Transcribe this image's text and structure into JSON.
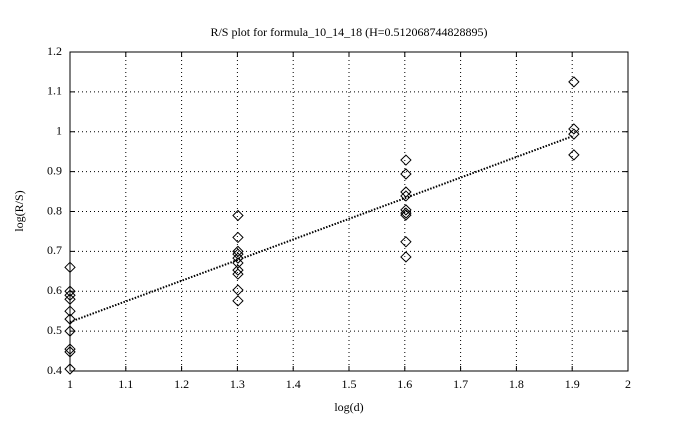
{
  "chart_data": {
    "type": "scatter",
    "title": "R/S plot for formula_10_14_18 (H=0.512068744828895)",
    "x_label": "log(d)",
    "y_label": "log(R/S)",
    "xlim": [
      1,
      2
    ],
    "ylim": [
      0.4,
      1.2
    ],
    "xticks": [
      1,
      1.1,
      1.2,
      1.3,
      1.4,
      1.5,
      1.6,
      1.7,
      1.8,
      1.9,
      2
    ],
    "yticks": [
      0.4,
      0.5,
      0.6,
      0.7,
      0.8,
      0.9,
      1,
      1.1,
      1.2
    ],
    "grid": true,
    "series": [
      {
        "type": "scatter",
        "marker": "diamond",
        "color": "#000000",
        "x": [
          1,
          1,
          1,
          1,
          1,
          1,
          1,
          1,
          1,
          1,
          1.301,
          1.301,
          1.301,
          1.301,
          1.301,
          1.301,
          1.301,
          1.301,
          1.301,
          1.301,
          1.602,
          1.602,
          1.602,
          1.602,
          1.602,
          1.602,
          1.602,
          1.602,
          1.602,
          1.903,
          1.903,
          1.903,
          1.903
        ],
        "values": [
          0.66,
          0.6,
          0.59,
          0.58,
          0.55,
          0.53,
          0.5,
          0.455,
          0.448,
          0.405,
          0.79,
          0.735,
          0.7,
          0.693,
          0.683,
          0.671,
          0.653,
          0.643,
          0.603,
          0.576,
          0.929,
          0.894,
          0.849,
          0.839,
          0.804,
          0.796,
          0.791,
          0.724,
          0.686,
          1.125,
          1.007,
          0.994,
          0.942
        ]
      },
      {
        "type": "line",
        "style": "dotted",
        "color": "#000000",
        "x": [
          1,
          1.903
        ],
        "values": [
          0.523,
          0.99
        ]
      }
    ]
  }
}
